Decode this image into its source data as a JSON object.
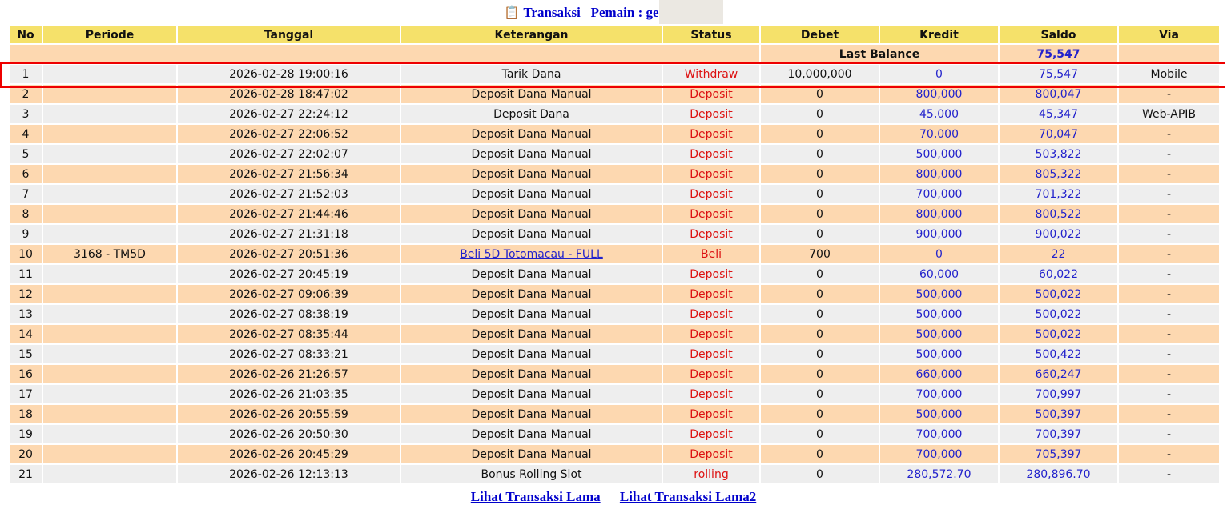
{
  "header": {
    "icon": "clipboard-icon",
    "title": "Transaksi",
    "player_label": "Pemain : ge"
  },
  "columns": [
    "No",
    "Periode",
    "Tanggal",
    "Keterangan",
    "Status",
    "Debet",
    "Kredit",
    "Saldo",
    "Via"
  ],
  "last_balance": {
    "label": "Last Balance",
    "value": "75,547"
  },
  "highlighted_row": 1,
  "rows": [
    {
      "no": "1",
      "periode": "",
      "tanggal": "2026-02-28 19:00:16",
      "keterangan": "Tarik Dana",
      "status": "Withdraw",
      "debet": "10,000,000",
      "kredit": "0",
      "saldo": "75,547",
      "via": "Mobile"
    },
    {
      "no": "2",
      "periode": "",
      "tanggal": "2026-02-28 18:47:02",
      "keterangan": "Deposit Dana Manual",
      "status": "Deposit",
      "debet": "0",
      "kredit": "800,000",
      "saldo": "800,047",
      "via": "-"
    },
    {
      "no": "3",
      "periode": "",
      "tanggal": "2026-02-27 22:24:12",
      "keterangan": "Deposit Dana",
      "status": "Deposit",
      "debet": "0",
      "kredit": "45,000",
      "saldo": "45,347",
      "via": "Web-APIB"
    },
    {
      "no": "4",
      "periode": "",
      "tanggal": "2026-02-27 22:06:52",
      "keterangan": "Deposit Dana Manual",
      "status": "Deposit",
      "debet": "0",
      "kredit": "70,000",
      "saldo": "70,047",
      "via": "-"
    },
    {
      "no": "5",
      "periode": "",
      "tanggal": "2026-02-27 22:02:07",
      "keterangan": "Deposit Dana Manual",
      "status": "Deposit",
      "debet": "0",
      "kredit": "500,000",
      "saldo": "503,822",
      "via": "-"
    },
    {
      "no": "6",
      "periode": "",
      "tanggal": "2026-02-27 21:56:34",
      "keterangan": "Deposit Dana Manual",
      "status": "Deposit",
      "debet": "0",
      "kredit": "800,000",
      "saldo": "805,322",
      "via": "-"
    },
    {
      "no": "7",
      "periode": "",
      "tanggal": "2026-02-27 21:52:03",
      "keterangan": "Deposit Dana Manual",
      "status": "Deposit",
      "debet": "0",
      "kredit": "700,000",
      "saldo": "701,322",
      "via": "-"
    },
    {
      "no": "8",
      "periode": "",
      "tanggal": "2026-02-27 21:44:46",
      "keterangan": "Deposit Dana Manual",
      "status": "Deposit",
      "debet": "0",
      "kredit": "800,000",
      "saldo": "800,522",
      "via": "-"
    },
    {
      "no": "9",
      "periode": "",
      "tanggal": "2026-02-27 21:31:18",
      "keterangan": "Deposit Dana Manual",
      "status": "Deposit",
      "debet": "0",
      "kredit": "900,000",
      "saldo": "900,022",
      "via": "-"
    },
    {
      "no": "10",
      "periode": "3168 - TM5D",
      "tanggal": "2026-02-27 20:51:36",
      "keterangan": "Beli 5D Totomacau - FULL",
      "link": true,
      "status": "Beli",
      "debet": "700",
      "kredit": "0",
      "saldo": "22",
      "via": "-"
    },
    {
      "no": "11",
      "periode": "",
      "tanggal": "2026-02-27 20:45:19",
      "keterangan": "Deposit Dana Manual",
      "status": "Deposit",
      "debet": "0",
      "kredit": "60,000",
      "saldo": "60,022",
      "via": "-"
    },
    {
      "no": "12",
      "periode": "",
      "tanggal": "2026-02-27 09:06:39",
      "keterangan": "Deposit Dana Manual",
      "status": "Deposit",
      "debet": "0",
      "kredit": "500,000",
      "saldo": "500,022",
      "via": "-"
    },
    {
      "no": "13",
      "periode": "",
      "tanggal": "2026-02-27 08:38:19",
      "keterangan": "Deposit Dana Manual",
      "status": "Deposit",
      "debet": "0",
      "kredit": "500,000",
      "saldo": "500,022",
      "via": "-"
    },
    {
      "no": "14",
      "periode": "",
      "tanggal": "2026-02-27 08:35:44",
      "keterangan": "Deposit Dana Manual",
      "status": "Deposit",
      "debet": "0",
      "kredit": "500,000",
      "saldo": "500,022",
      "via": "-"
    },
    {
      "no": "15",
      "periode": "",
      "tanggal": "2026-02-27 08:33:21",
      "keterangan": "Deposit Dana Manual",
      "status": "Deposit",
      "debet": "0",
      "kredit": "500,000",
      "saldo": "500,422",
      "via": "-"
    },
    {
      "no": "16",
      "periode": "",
      "tanggal": "2026-02-26 21:26:57",
      "keterangan": "Deposit Dana Manual",
      "status": "Deposit",
      "debet": "0",
      "kredit": "660,000",
      "saldo": "660,247",
      "via": "-"
    },
    {
      "no": "17",
      "periode": "",
      "tanggal": "2026-02-26 21:03:35",
      "keterangan": "Deposit Dana Manual",
      "status": "Deposit",
      "debet": "0",
      "kredit": "700,000",
      "saldo": "700,997",
      "via": "-"
    },
    {
      "no": "18",
      "periode": "",
      "tanggal": "2026-02-26 20:55:59",
      "keterangan": "Deposit Dana Manual",
      "status": "Deposit",
      "debet": "0",
      "kredit": "500,000",
      "saldo": "500,397",
      "via": "-"
    },
    {
      "no": "19",
      "periode": "",
      "tanggal": "2026-02-26 20:50:30",
      "keterangan": "Deposit Dana Manual",
      "status": "Deposit",
      "debet": "0",
      "kredit": "700,000",
      "saldo": "700,397",
      "via": "-"
    },
    {
      "no": "20",
      "periode": "",
      "tanggal": "2026-02-26 20:45:29",
      "keterangan": "Deposit Dana Manual",
      "status": "Deposit",
      "debet": "0",
      "kredit": "700,000",
      "saldo": "705,397",
      "via": "-"
    },
    {
      "no": "21",
      "periode": "",
      "tanggal": "2026-02-26 12:13:13",
      "keterangan": "Bonus Rolling Slot",
      "status": "rolling",
      "debet": "0",
      "kredit": "280,572.70",
      "saldo": "280,896.70",
      "via": "-"
    }
  ],
  "footer_links": [
    "Lihat Transaksi Lama",
    "Lihat Transaksi Lama2"
  ],
  "colors": {
    "header_bg": "#f5e16a",
    "row_even": "#fdd8b0",
    "row_odd": "#eeeeee",
    "status": "#dd1111",
    "amount": "#2222cc",
    "highlight": "#ee0000"
  }
}
